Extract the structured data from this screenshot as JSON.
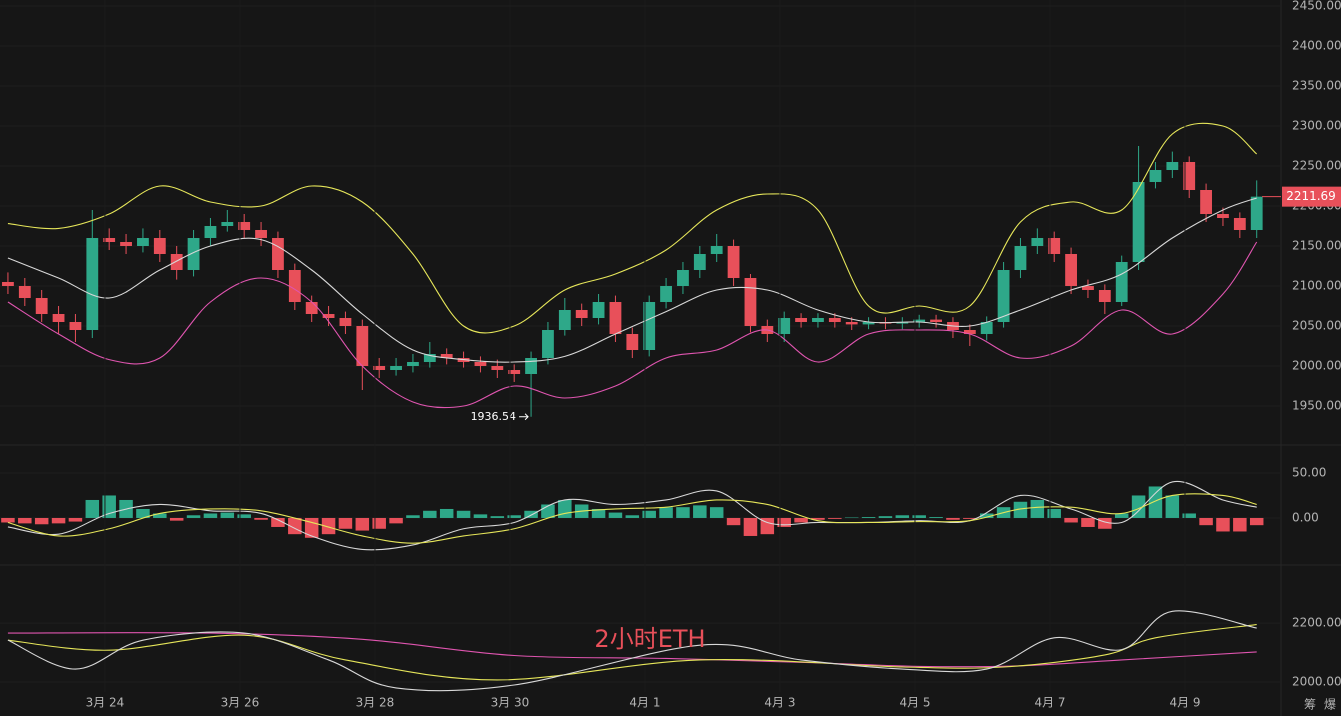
{
  "chart_data": [
    {
      "type": "candlestick",
      "xlim": [
        -0.47,
        75.38
      ],
      "ylim": [
        1945,
        2457.5
      ],
      "grid": true,
      "yticks": [
        {
          "value": 1950,
          "label": "1950.00"
        },
        {
          "value": 2000,
          "label": "2000.00"
        },
        {
          "value": 2050,
          "label": "2050.00"
        },
        {
          "value": 2100,
          "label": "2100.00"
        },
        {
          "value": 2150,
          "label": "2150.00"
        },
        {
          "value": 2200,
          "label": "2200.00"
        },
        {
          "value": 2250,
          "label": "2250.00"
        },
        {
          "value": 2300,
          "label": "2300.00"
        },
        {
          "value": 2350,
          "label": "2350.00"
        },
        {
          "value": 2400,
          "label": "2400.00"
        },
        {
          "value": 2450,
          "label": "2450.00"
        }
      ],
      "up_color": "#2ea889",
      "down_color": "#e8505a",
      "open": [
        2105,
        2100,
        2085,
        2065,
        2055,
        2045,
        2160,
        2155,
        2150,
        2160,
        2140,
        2120,
        2160,
        2175,
        2180,
        2170,
        2160,
        2120,
        2080,
        2065,
        2060,
        2050,
        2000,
        1995,
        2000,
        2005,
        2015,
        2010,
        2005,
        2000,
        1995,
        1990,
        2010,
        2045,
        2070,
        2060,
        2080,
        2040,
        2020,
        2080,
        2100,
        2120,
        2140,
        2150,
        2110,
        2050,
        2040,
        2060,
        2055,
        2060,
        2055,
        2052,
        2055,
        2053,
        2055,
        2058,
        2055,
        2045,
        2040,
        2055,
        2120,
        2150,
        2160,
        2140,
        2100,
        2095,
        2080,
        2130,
        2230,
        2245,
        2255,
        2220,
        2190,
        2185,
        2170
      ],
      "high": [
        2117,
        2110,
        2095,
        2075,
        2065,
        2195,
        2172,
        2165,
        2172,
        2170,
        2150,
        2170,
        2185,
        2195,
        2190,
        2180,
        2168,
        2128,
        2088,
        2075,
        2068,
        2058,
        2010,
        2010,
        2015,
        2030,
        2022,
        2018,
        2012,
        2008,
        2002,
        2018,
        2055,
        2085,
        2078,
        2090,
        2088,
        2048,
        2088,
        2110,
        2130,
        2150,
        2165,
        2158,
        2115,
        2058,
        2068,
        2066,
        2066,
        2066,
        2061,
        2061,
        2061,
        2061,
        2064,
        2064,
        2061,
        2052,
        2062,
        2130,
        2160,
        2172,
        2168,
        2148,
        2108,
        2102,
        2138,
        2275,
        2255,
        2268,
        2262,
        2228,
        2198,
        2192,
        2232
      ],
      "low": [
        2090,
        2075,
        2055,
        2040,
        2030,
        2035,
        2145,
        2140,
        2142,
        2130,
        2108,
        2112,
        2150,
        2168,
        2160,
        2150,
        2110,
        2070,
        2055,
        2050,
        2040,
        1970,
        1985,
        1988,
        1992,
        1998,
        2002,
        1998,
        1992,
        1985,
        1980,
        1936.54,
        2002,
        2038,
        2050,
        2052,
        2030,
        2010,
        2012,
        2072,
        2090,
        2110,
        2130,
        2100,
        2042,
        2030,
        2030,
        2048,
        2048,
        2048,
        2045,
        2046,
        2046,
        2046,
        2048,
        2048,
        2035,
        2025,
        2032,
        2048,
        2110,
        2140,
        2130,
        2090,
        2085,
        2065,
        2075,
        2120,
        2222,
        2235,
        2210,
        2180,
        2175,
        2160,
        2160
      ],
      "close": [
        2100,
        2085,
        2065,
        2055,
        2045,
        2160,
        2155,
        2150,
        2160,
        2140,
        2120,
        2160,
        2175,
        2180,
        2170,
        2160,
        2120,
        2080,
        2065,
        2060,
        2050,
        2000,
        1995,
        2000,
        2005,
        2015,
        2010,
        2005,
        2000,
        1995,
        1990,
        2010,
        2045,
        2070,
        2060,
        2080,
        2040,
        2020,
        2080,
        2100,
        2120,
        2140,
        2150,
        2110,
        2050,
        2040,
        2060,
        2055,
        2060,
        2055,
        2052,
        2055,
        2053,
        2055,
        2058,
        2055,
        2045,
        2040,
        2055,
        2120,
        2150,
        2160,
        2140,
        2100,
        2095,
        2080,
        2130,
        2230,
        2245,
        2255,
        2220,
        2190,
        2185,
        2170,
        2211.69
      ],
      "last_price": 2211.69,
      "last_price_color": "#e8505a",
      "low_annotation": 1936.54,
      "overlays": [
        {
          "color": "#e6e65a",
          "x": [
            0,
            3,
            6,
            9,
            12,
            15,
            18,
            21,
            24,
            27,
            30,
            33,
            36,
            39,
            42,
            45,
            48,
            51,
            54,
            57,
            60,
            63,
            66,
            69,
            72,
            74
          ],
          "values": [
            2178,
            2172,
            2190,
            2225,
            2205,
            2200,
            2225,
            2205,
            2140,
            2050,
            2050,
            2095,
            2115,
            2145,
            2195,
            2215,
            2195,
            2075,
            2075,
            2075,
            2180,
            2205,
            2195,
            2290,
            2300,
            2265
          ]
        },
        {
          "color": "#d8d8d8",
          "x": [
            0,
            3,
            6,
            9,
            12,
            15,
            18,
            21,
            24,
            27,
            30,
            33,
            36,
            39,
            42,
            45,
            48,
            51,
            54,
            57,
            60,
            63,
            66,
            69,
            72,
            74
          ],
          "values": [
            2135,
            2110,
            2085,
            2120,
            2150,
            2158,
            2120,
            2065,
            2020,
            2008,
            2005,
            2012,
            2040,
            2068,
            2095,
            2095,
            2070,
            2055,
            2055,
            2050,
            2070,
            2095,
            2115,
            2160,
            2195,
            2210
          ]
        },
        {
          "color": "#e055b0",
          "x": [
            0,
            3,
            6,
            9,
            12,
            15,
            18,
            21,
            24,
            27,
            30,
            33,
            36,
            39,
            42,
            45,
            48,
            51,
            54,
            57,
            60,
            63,
            66,
            69,
            72,
            74
          ],
          "values": [
            2080,
            2040,
            2008,
            2010,
            2080,
            2110,
            2080,
            2000,
            1955,
            1950,
            1975,
            1960,
            1975,
            2010,
            2020,
            2045,
            2005,
            2040,
            2045,
            2040,
            2010,
            2025,
            2070,
            2040,
            2090,
            2155
          ]
        }
      ]
    },
    {
      "type": "macd",
      "xlim": [
        -0.47,
        75.38
      ],
      "ylim": [
        -46.7,
        73.3
      ],
      "yticks": [
        {
          "value": 0,
          "label": "0.00"
        },
        {
          "value": 50,
          "label": "50.00"
        }
      ],
      "up_color": "#2ea889",
      "down_color": "#e8505a",
      "histogram": [
        -5,
        -6,
        -7,
        -6,
        -4,
        20,
        25,
        20,
        10,
        5,
        -3,
        3,
        5,
        6,
        4,
        -2,
        -10,
        -18,
        -22,
        -18,
        -12,
        -14,
        -12,
        -6,
        3,
        8,
        10,
        8,
        4,
        2,
        3,
        8,
        15,
        20,
        15,
        10,
        6,
        3,
        8,
        12,
        12,
        14,
        12,
        -8,
        -20,
        -18,
        -10,
        -5,
        -2,
        -1,
        0.5,
        1,
        2,
        3,
        3,
        1,
        -2,
        -1,
        5,
        12,
        18,
        20,
        10,
        -5,
        -10,
        -12,
        5,
        25,
        35,
        25,
        5,
        -8,
        -15,
        -15,
        -8
      ],
      "lines": [
        {
          "color": "#d8d8d8",
          "x": [
            0,
            3,
            6,
            9,
            12,
            15,
            18,
            21,
            24,
            27,
            30,
            33,
            36,
            39,
            42,
            45,
            48,
            51,
            54,
            57,
            60,
            63,
            66,
            69,
            72,
            74
          ],
          "values": [
            -10,
            -18,
            5,
            15,
            8,
            5,
            -20,
            -35,
            -30,
            -12,
            -5,
            20,
            15,
            20,
            30,
            -5,
            -5,
            -5,
            -3,
            -3,
            25,
            10,
            -5,
            40,
            20,
            12
          ]
        },
        {
          "color": "#e6e65a",
          "x": [
            0,
            3,
            6,
            9,
            12,
            15,
            18,
            21,
            24,
            27,
            30,
            33,
            36,
            39,
            42,
            45,
            48,
            51,
            54,
            57,
            60,
            63,
            66,
            69,
            72,
            74
          ],
          "values": [
            -5,
            -20,
            -12,
            5,
            10,
            8,
            -5,
            -20,
            -28,
            -20,
            -12,
            5,
            10,
            12,
            20,
            15,
            -3,
            -5,
            -4,
            -3,
            10,
            12,
            5,
            25,
            25,
            15
          ]
        }
      ]
    },
    {
      "type": "line",
      "xlim": [
        -0.47,
        75.38
      ],
      "ylim": [
        1973,
        2380
      ],
      "yticks": [
        {
          "value": 2000,
          "label": "2000.00"
        },
        {
          "value": 2200,
          "label": "2200.00"
        }
      ],
      "xticks": [
        {
          "value": 5.75,
          "label": "3月 24"
        },
        {
          "value": 13.75,
          "label": "3月 26"
        },
        {
          "value": 21.75,
          "label": "3月 28"
        },
        {
          "value": 29.75,
          "label": "3月 30"
        },
        {
          "value": 37.75,
          "label": "4月 1"
        },
        {
          "value": 45.75,
          "label": "4月 3"
        },
        {
          "value": 53.75,
          "label": "4月 5"
        },
        {
          "value": 61.75,
          "label": "4月 7"
        },
        {
          "value": 69.75,
          "label": "4月 9"
        }
      ],
      "watermark": "2小时ETH",
      "watermark_color": "#e8505a",
      "lines": [
        {
          "color": "#e055b0",
          "x": [
            0,
            12,
            21,
            30,
            39,
            48,
            54,
            60,
            66,
            74
          ],
          "values": [
            2166,
            2166,
            2145,
            2090,
            2080,
            2065,
            2053,
            2055,
            2075,
            2102
          ]
        },
        {
          "color": "#e6e65a",
          "x": [
            0,
            6,
            14,
            20,
            29,
            41,
            53,
            59,
            65,
            68,
            74
          ],
          "values": [
            2142,
            2108,
            2159,
            2075,
            2007,
            2075,
            2051,
            2051,
            2092,
            2150,
            2195
          ]
        },
        {
          "color": "#d8d8d8",
          "x": [
            0,
            4,
            8,
            14,
            19,
            23,
            30,
            41,
            47,
            53,
            58,
            62,
            66,
            69,
            74
          ],
          "values": [
            2142,
            2044,
            2142,
            2166,
            2075,
            1980,
            1990,
            2125,
            2075,
            2044,
            2044,
            2150,
            2110,
            2240,
            2183
          ]
        }
      ]
    }
  ],
  "corner_labels": [
    "筹",
    "爆"
  ]
}
